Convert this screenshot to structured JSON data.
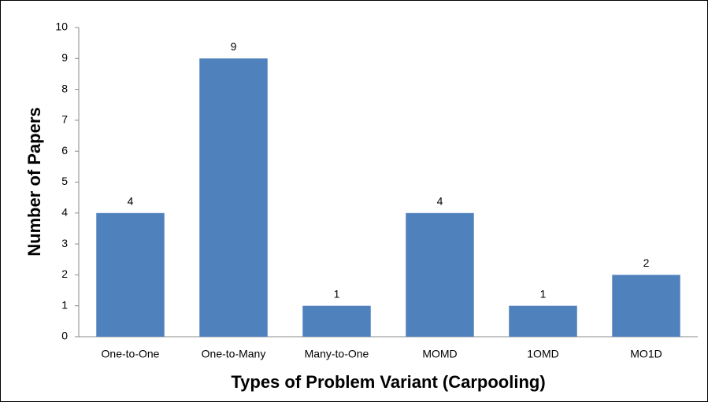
{
  "chart_data": {
    "type": "bar",
    "x_label": "Types of Problem Variant (Carpooling)",
    "y_label": "Number of Papers",
    "categories": [
      "One-to-One",
      "One-to-Many",
      "Many-to-One",
      "MOMD",
      "1OMD",
      "MO1D"
    ],
    "values": [
      4,
      9,
      1,
      4,
      1,
      2
    ],
    "color": "#4f81bd",
    "ylim": [
      0,
      10
    ],
    "yticks": [
      0,
      1,
      2,
      3,
      4,
      5,
      6,
      7,
      8,
      9,
      10
    ],
    "grid": false
  }
}
